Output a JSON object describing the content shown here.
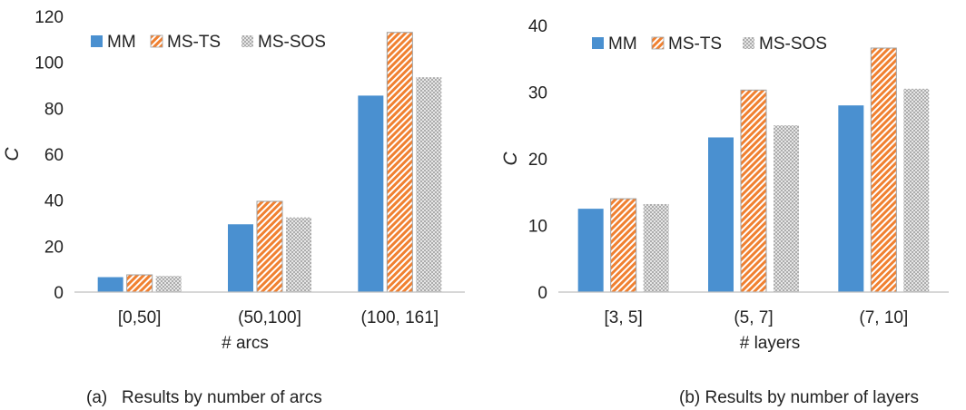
{
  "chart_data": [
    {
      "type": "bar",
      "title": "",
      "caption": "(a)   Results by number of arcs",
      "xlabel": "# arcs",
      "ylabel": "C",
      "categories": [
        "[0,50]",
        "(50,100]",
        "(100, 161]"
      ],
      "ylim": [
        0,
        120
      ],
      "yticks": [
        0,
        20,
        40,
        60,
        80,
        100,
        120
      ],
      "grid": false,
      "legend": "top-left",
      "series": [
        {
          "name": "MM",
          "values": [
            6.5,
            29.5,
            85.5
          ],
          "color": "#4a90d0",
          "pattern": "solid"
        },
        {
          "name": "MS-TS",
          "values": [
            7.5,
            39.5,
            113
          ],
          "color": "#f08030",
          "pattern": "diagonal-hatch"
        },
        {
          "name": "MS-SOS",
          "values": [
            7,
            32.5,
            93.5
          ],
          "color": "#a8a8a8",
          "pattern": "crosshatch"
        }
      ]
    },
    {
      "type": "bar",
      "title": "",
      "caption": "(b) Results by number of layers",
      "xlabel": "# layers",
      "ylabel": "C",
      "categories": [
        "[3, 5]",
        "(5, 7]",
        "(7, 10]"
      ],
      "ylim": [
        0,
        40
      ],
      "yticks": [
        0,
        10,
        20,
        30,
        40
      ],
      "grid": false,
      "legend": "top-left",
      "series": [
        {
          "name": "MM",
          "values": [
            12.5,
            23.2,
            28
          ],
          "color": "#4a90d0",
          "pattern": "solid"
        },
        {
          "name": "MS-TS",
          "values": [
            14,
            30.3,
            36.6
          ],
          "color": "#f08030",
          "pattern": "diagonal-hatch"
        },
        {
          "name": "MS-SOS",
          "values": [
            13.2,
            25,
            30.5
          ],
          "color": "#a8a8a8",
          "pattern": "crosshatch"
        }
      ]
    }
  ]
}
